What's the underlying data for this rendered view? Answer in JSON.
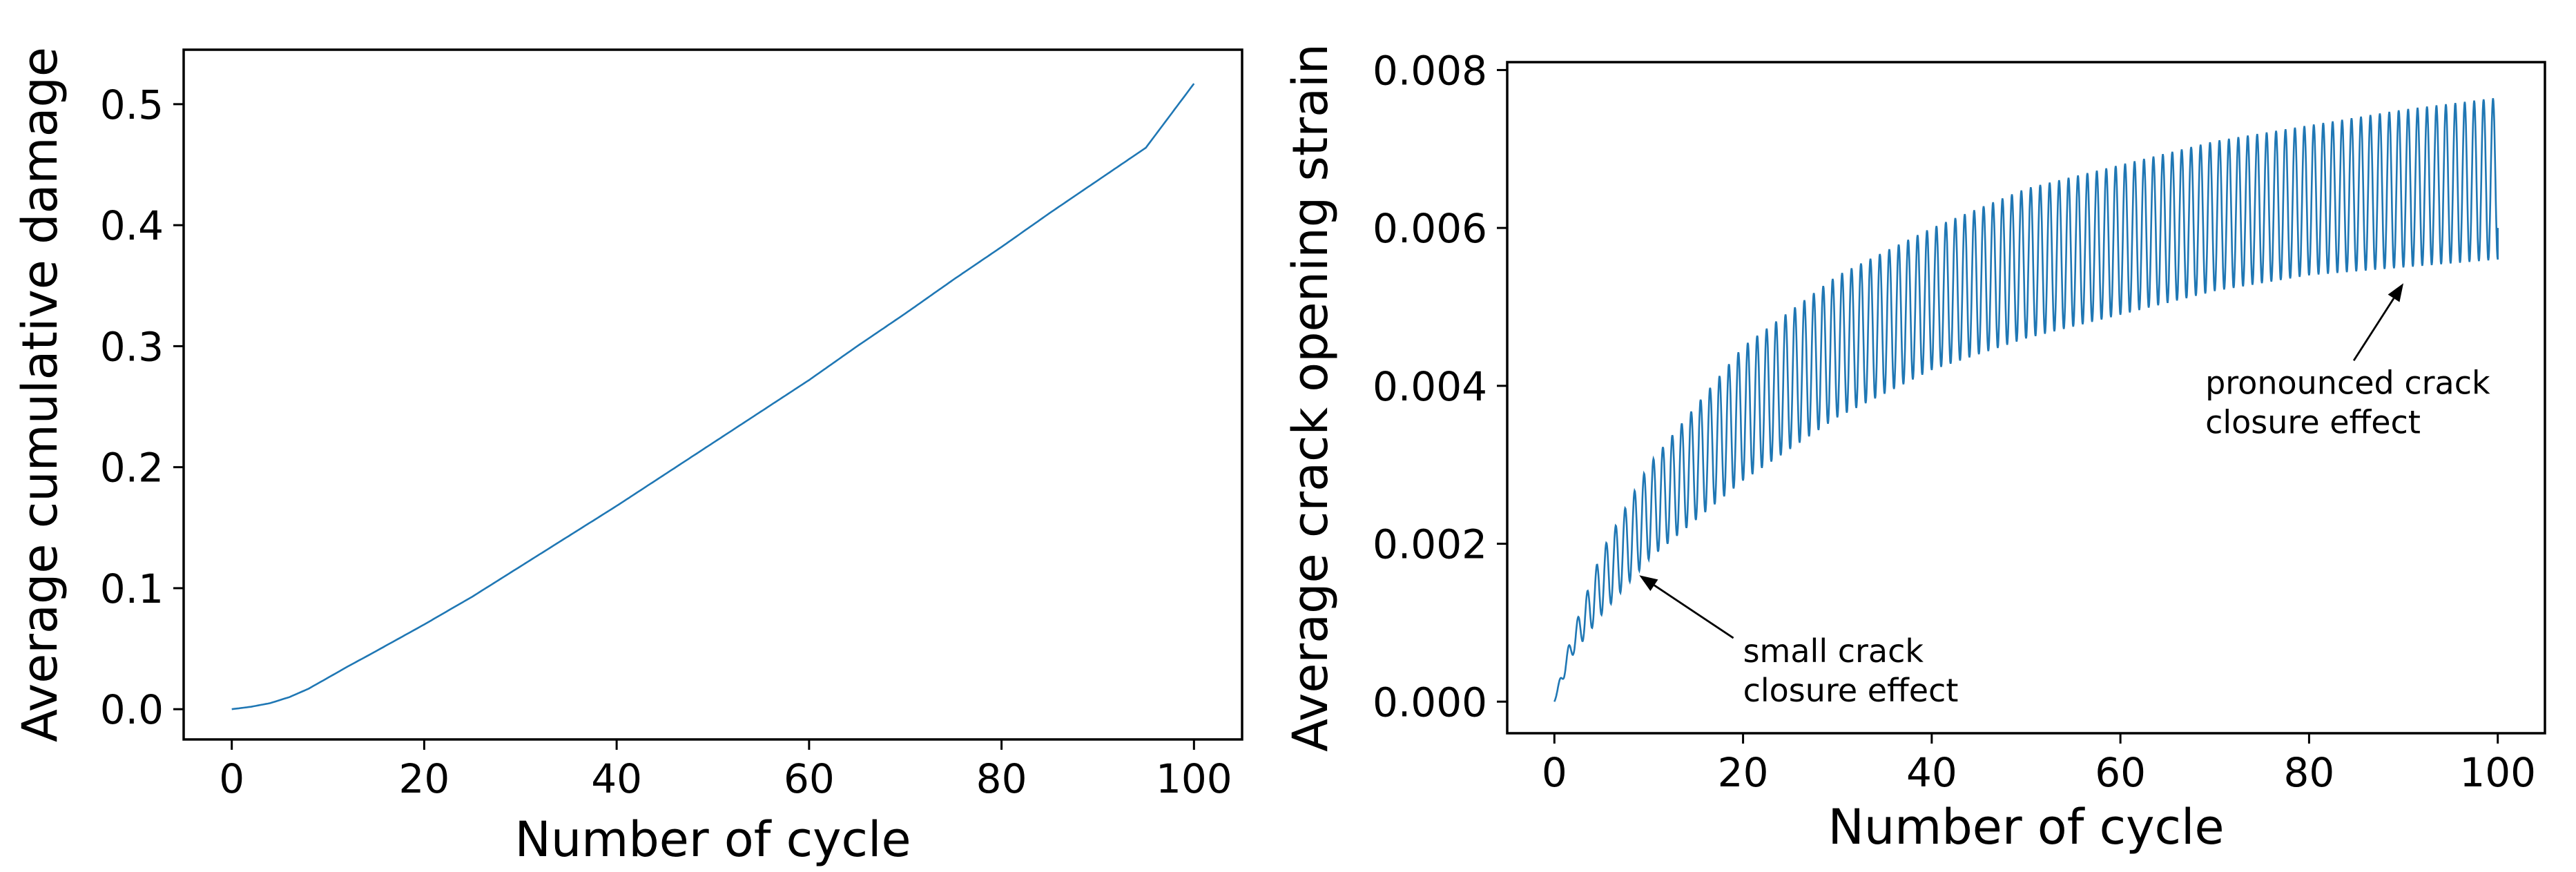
{
  "chart_data": [
    {
      "type": "line",
      "title": "",
      "xlabel": "Number of cycle",
      "ylabel": "Average cumulative damage",
      "xlim": [
        -5,
        105
      ],
      "ylim": [
        -0.025,
        0.545
      ],
      "xticks": [
        0,
        20,
        40,
        60,
        80,
        100
      ],
      "xtick_labels": [
        "0",
        "20",
        "40",
        "60",
        "80",
        "100"
      ],
      "yticks": [
        0.0,
        0.1,
        0.2,
        0.3,
        0.4,
        0.5
      ],
      "ytick_labels": [
        "0.0",
        "0.1",
        "0.2",
        "0.3",
        "0.4",
        "0.5"
      ],
      "grid": false,
      "series": [
        {
          "color": "#1f77b4",
          "x": [
            0,
            2,
            4,
            6,
            8,
            10,
            12,
            15,
            20,
            25,
            30,
            35,
            40,
            45,
            50,
            55,
            60,
            65,
            70,
            75,
            80,
            85,
            90,
            95,
            100
          ],
          "y": [
            0.0,
            0.002,
            0.005,
            0.01,
            0.017,
            0.026,
            0.035,
            0.048,
            0.07,
            0.093,
            0.118,
            0.143,
            0.168,
            0.194,
            0.22,
            0.246,
            0.272,
            0.3,
            0.327,
            0.355,
            0.382,
            0.41,
            0.437,
            0.464,
            0.517
          ]
        }
      ]
    },
    {
      "type": "line",
      "title": "",
      "xlabel": "Number of cycle",
      "ylabel": "Average crack opening strain",
      "xlim": [
        -5,
        105
      ],
      "ylim": [
        -0.0004,
        0.0081
      ],
      "xticks": [
        0,
        20,
        40,
        60,
        80,
        100
      ],
      "xtick_labels": [
        "0",
        "20",
        "40",
        "60",
        "80",
        "100"
      ],
      "yticks": [
        0.0,
        0.002,
        0.004,
        0.006,
        0.008
      ],
      "ytick_labels": [
        "0.000",
        "0.002",
        "0.004",
        "0.006",
        "0.008"
      ],
      "grid": false,
      "series": [
        {
          "color": "#1f77b4",
          "cycles": 100,
          "x": [
            0,
            1,
            2,
            5,
            10,
            20,
            30,
            40,
            50,
            60,
            70,
            80,
            90,
            100
          ],
          "upper_envelope": [
            0.0,
            0.0005,
            0.0009,
            0.0019,
            0.003,
            0.0045,
            0.0054,
            0.006,
            0.0065,
            0.0068,
            0.0071,
            0.0073,
            0.0075,
            0.00765
          ],
          "lower_envelope": [
            0.0,
            0.0003,
            0.0006,
            0.0011,
            0.0018,
            0.0028,
            0.0036,
            0.0042,
            0.0046,
            0.0049,
            0.0052,
            0.0054,
            0.0055,
            0.0056
          ],
          "final_value": 0.006
        }
      ],
      "annotations": [
        {
          "text": [
            "small crack",
            "closure effect"
          ],
          "xy": [
            9,
            0.0016
          ],
          "xytext": [
            20,
            0.0005
          ]
        },
        {
          "text": [
            "pronounced crack",
            "closure effect"
          ],
          "xy": [
            90,
            0.0053
          ],
          "xytext": [
            69,
            0.0039
          ]
        }
      ]
    }
  ]
}
